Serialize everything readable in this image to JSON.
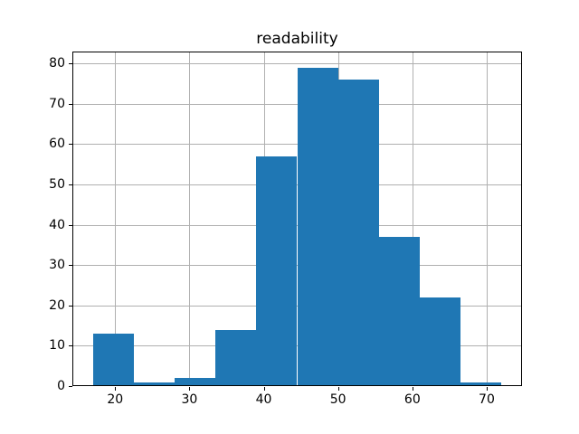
{
  "chart_data": {
    "type": "histogram",
    "title": "readability",
    "xlabel": "",
    "ylabel": "",
    "bin_edges": [
      17,
      22.5,
      28,
      33.5,
      39,
      44.5,
      50,
      55.5,
      61,
      66.5,
      72
    ],
    "counts": [
      13,
      1,
      2,
      14,
      57,
      79,
      76,
      37,
      22,
      1
    ],
    "xticks": [
      20,
      30,
      40,
      50,
      60,
      70
    ],
    "yticks": [
      0,
      10,
      20,
      30,
      40,
      50,
      60,
      70,
      80
    ],
    "xlim": [
      14.25,
      74.75
    ],
    "ylim": [
      0,
      82.95
    ],
    "grid": true,
    "legend": "none",
    "bar_color": "#1f77b4",
    "grid_color": "#b0b0b0",
    "spine_color": "#000000",
    "background_color": "#ffffff"
  }
}
